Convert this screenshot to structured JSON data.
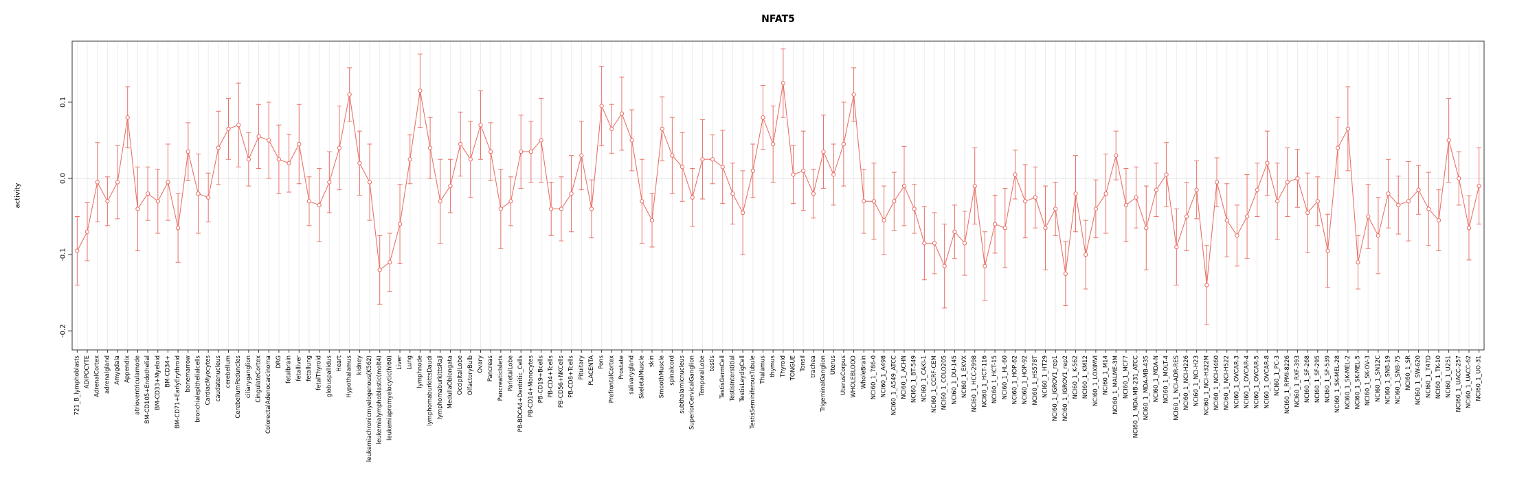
{
  "page": {
    "background": "#ffffff"
  },
  "chart_data": {
    "type": "line",
    "title": "NFAT5",
    "xlabel": "",
    "ylabel": "activity",
    "ylim": [
      -0.225,
      0.18
    ],
    "yticks": [
      0.1,
      0.0,
      -0.1,
      -0.2
    ],
    "grid": "vertical-per-category",
    "legend": "none",
    "series_color": "#e87268",
    "error_bars": true,
    "point_style": "open-circle",
    "categories": [
      "721_B_lymphoblasts",
      "ADIPOCYTE",
      "AdrenalCortex",
      "adrenalgland",
      "Amygdala",
      "Appendix",
      "atrioventricularnode",
      "BM-CD105+Endothelial",
      "BM-CD33+Myeloid",
      "BM-CD34+",
      "BM-CD71+EarlyErythroid",
      "bonemarrow",
      "bronchialepithelialcells",
      "CardiacMyocytes",
      "caudatenucleus",
      "cerebellum",
      "CerebellumPeduncles",
      "ciliaryganglion",
      "CingulateCortex",
      "ColorectalAdenocarcinoma",
      "DRG",
      "fetalbrain",
      "fetalliver",
      "fetallung",
      "fetalThyroid",
      "globuspallidus",
      "Heart",
      "Hypothalamus",
      "kidney",
      "leukemiachronicmyelogenous(K562)",
      "leukemialymphoblastic(molt4)",
      "leukemiapromyelocytic(hl60)",
      "Liver",
      "Lung",
      "lymphnode",
      "lymphomaburkittsDaudi",
      "lymphomaburkittsRaji",
      "MedullaOblongata",
      "OccipitalLobe",
      "OlfactoryBulb",
      "Ovary",
      "Pancreas",
      "PancreaticIslets",
      "ParietalLobe",
      "PB-BDCA4+Dentritic_Cells",
      "PB-CD14+Monocytes",
      "PB-CD19+Bcells",
      "PB-CD4+Tcells",
      "PB-CD56+NKCells",
      "PB-CD8+Tcells",
      "Pituitary",
      "PLACENTA",
      "Pons",
      "PrefrontalCortex",
      "Prostate",
      "salivarygland",
      "SkeletalMuscle",
      "skin",
      "SmoothMuscle",
      "spinalcord",
      "subthalamicnucleus",
      "SuperiorCervicalGanglion",
      "TemporalLobe",
      "testis",
      "TestisGermCell",
      "TestisInterstitial",
      "TestisLeydigCell",
      "TestisSeminiferousTubule",
      "Thalamus",
      "thymus",
      "Thyroid",
      "TONGUE",
      "Tonsil",
      "trachea",
      "TrigeminalGanglion",
      "Uterus",
      "UterusCorpus",
      "WHOLEBLOOD",
      "WholeBrain",
      "NCI60_1_786-0",
      "NCI60_1_A498",
      "NCI60_1_A549_ATCC",
      "NCI60_1_ACHN",
      "NCI60_1_BT-549",
      "NCI60_1_CAKI-1",
      "NCI60_1_CCRF-CEM",
      "NCI60_1_COLO205",
      "NCI60_1_DU-145",
      "NCI60_1_EKVX",
      "NCI60_1_HCC-2998",
      "NCI60_1_HCT-116",
      "NCI60_1_HCT-15",
      "NCI60_1_HL-60",
      "NCI60_1_HOP-62",
      "NCI60_1_HOP-92",
      "NCI60_1_HS578T",
      "NCI60_1_HT29",
      "NCI60_1_IGROV1_rep1",
      "NCI60_1_IGROV1_rep2",
      "NCI60_1_K-562",
      "NCI60_1_KM12",
      "NCI60_1_LOXIMVI",
      "NCI60_1_M14",
      "NCI60_1_MALME-3M",
      "NCI60_1_MCF7",
      "NCI60_1_MDA-MB-231_ATCC",
      "NCI60_1_MDA-MB-435",
      "NCI60_1_MDA-N",
      "NCI60_1_MOLT-4",
      "NCI60_1_NCI-ADR-RES",
      "NCI60_1_NCI-H226",
      "NCI60_1_NCI-H23",
      "NCI60_1_NCI-H322M",
      "NCI60_1_NCI-H460",
      "NCI60_1_NCI-H522",
      "NCI60_1_OVCAR-3",
      "NCI60_1_OVCAR-4",
      "NCI60_1_OVCAR-5",
      "NCI60_1_OVCAR-8",
      "NCI60_1_PC-3",
      "NCI60_1_RPMI-8226",
      "NCI60_1_RXF-393",
      "NCI60_1_SF-268",
      "NCI60_1_SF-295",
      "NCI60_1_SF-539",
      "NCI60_1_SK-MEL-28",
      "NCI60_1_SK-MEL-2",
      "NCI60_1_SK-MEL-5",
      "NCI60_1_SK-OV-3",
      "NCI60_1_SN12C",
      "NCI60_1_SNB-19",
      "NCI60_1_SNB-75",
      "NCI60_1_SR",
      "NCI60_1_SW-620",
      "NCI60_1_T47D",
      "NCI60_1_TK-10",
      "NCI60_1_U251",
      "NCI60_1_UACC-257",
      "NCI60_1_UACC-62",
      "NCI60_1_UO-31"
    ],
    "values": [
      -0.095,
      -0.07,
      -0.005,
      -0.03,
      -0.005,
      0.08,
      -0.04,
      -0.02,
      -0.03,
      -0.005,
      -0.065,
      0.035,
      -0.02,
      -0.025,
      0.04,
      0.065,
      0.07,
      0.025,
      0.055,
      0.05,
      0.025,
      0.02,
      0.045,
      -0.03,
      -0.035,
      -0.005,
      0.04,
      0.11,
      0.02,
      -0.005,
      -0.12,
      -0.11,
      -0.06,
      0.025,
      0.115,
      0.04,
      -0.03,
      -0.01,
      0.045,
      0.025,
      0.07,
      0.035,
      -0.04,
      -0.03,
      0.035,
      0.035,
      0.05,
      -0.04,
      -0.04,
      -0.02,
      0.03,
      -0.04,
      0.095,
      0.065,
      0.085,
      0.05,
      -0.03,
      -0.055,
      0.065,
      0.03,
      0.015,
      -0.025,
      0.025,
      0.025,
      0.015,
      -0.02,
      -0.045,
      0.01,
      0.08,
      0.045,
      0.125,
      0.005,
      0.01,
      -0.02,
      0.035,
      0.005,
      0.045,
      0.11,
      -0.03,
      -0.03,
      -0.055,
      -0.03,
      -0.01,
      -0.04,
      -0.085,
      -0.085,
      -0.115,
      -0.07,
      -0.085,
      -0.01,
      -0.115,
      -0.06,
      -0.065,
      0.005,
      -0.03,
      -0.025,
      -0.065,
      -0.04,
      -0.125,
      -0.02,
      -0.1,
      -0.04,
      -0.02,
      0.03,
      -0.035,
      -0.025,
      -0.065,
      -0.015,
      0.005,
      -0.09,
      -0.05,
      -0.015,
      -0.14,
      -0.005,
      -0.055,
      -0.075,
      -0.05,
      -0.015,
      0.02,
      -0.03,
      -0.005,
      0.0,
      -0.045,
      -0.03,
      -0.095,
      0.04,
      0.065,
      -0.11,
      -0.05,
      -0.075,
      -0.02,
      -0.035,
      -0.03,
      -0.015,
      -0.04,
      -0.055,
      0.05,
      0.0,
      -0.065,
      -0.01
    ],
    "errors": [
      0.045,
      0.038,
      0.052,
      0.032,
      0.048,
      0.04,
      0.055,
      0.035,
      0.042,
      0.05,
      0.045,
      0.038,
      0.052,
      0.032,
      0.048,
      0.04,
      0.055,
      0.035,
      0.042,
      0.05,
      0.045,
      0.038,
      0.052,
      0.032,
      0.048,
      0.04,
      0.055,
      0.035,
      0.042,
      0.05,
      0.045,
      0.038,
      0.052,
      0.032,
      0.048,
      0.04,
      0.055,
      0.035,
      0.042,
      0.05,
      0.045,
      0.038,
      0.052,
      0.032,
      0.048,
      0.04,
      0.055,
      0.035,
      0.042,
      0.05,
      0.045,
      0.038,
      0.052,
      0.032,
      0.048,
      0.04,
      0.055,
      0.035,
      0.042,
      0.05,
      0.045,
      0.038,
      0.052,
      0.032,
      0.048,
      0.04,
      0.055,
      0.035,
      0.042,
      0.05,
      0.045,
      0.038,
      0.052,
      0.032,
      0.048,
      0.04,
      0.055,
      0.035,
      0.042,
      0.05,
      0.045,
      0.038,
      0.052,
      0.032,
      0.048,
      0.04,
      0.055,
      0.035,
      0.042,
      0.05,
      0.045,
      0.038,
      0.052,
      0.032,
      0.048,
      0.04,
      0.055,
      0.035,
      0.042,
      0.05,
      0.045,
      0.038,
      0.052,
      0.032,
      0.048,
      0.04,
      0.055,
      0.035,
      0.042,
      0.05,
      0.045,
      0.038,
      0.052,
      0.032,
      0.048,
      0.04,
      0.055,
      0.035,
      0.042,
      0.05,
      0.045,
      0.038,
      0.052,
      0.032,
      0.048,
      0.04,
      0.055,
      0.035,
      0.042,
      0.05,
      0.045,
      0.038,
      0.052,
      0.032,
      0.048,
      0.04,
      0.055,
      0.035,
      0.042,
      0.05
    ]
  }
}
